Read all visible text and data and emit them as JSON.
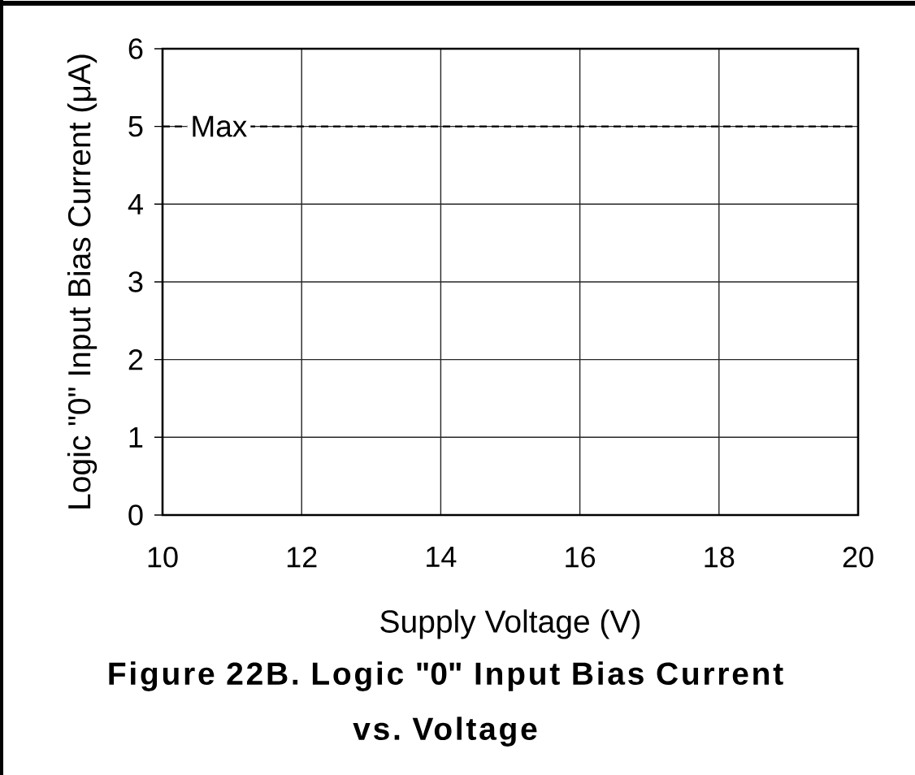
{
  "chart_data": {
    "type": "line",
    "title": "Figure 22B. Logic \"0\" Input Bias Current vs. Voltage",
    "xlabel": "Supply Voltage (V)",
    "ylabel": "Logic \"0\" Input Bias Current (μA)",
    "xlim": [
      10,
      20
    ],
    "ylim": [
      0,
      6
    ],
    "xticks": [
      10,
      12,
      14,
      16,
      18,
      20
    ],
    "yticks": [
      0,
      1,
      2,
      3,
      4,
      5,
      6
    ],
    "grid": true,
    "series": [
      {
        "name": "Max",
        "x": [
          10,
          20
        ],
        "values": [
          5,
          5
        ],
        "color": "#000000",
        "line_style": "dashed"
      }
    ]
  }
}
